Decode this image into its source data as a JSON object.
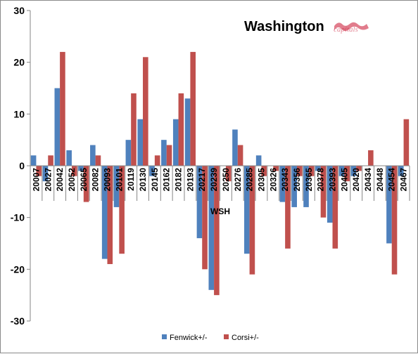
{
  "chart_data": {
    "type": "bar",
    "title": "Washington",
    "xlabel": "WSH",
    "ylabel": "",
    "ylim": [
      -30,
      30
    ],
    "yticks": [
      30,
      20,
      10,
      0,
      -10,
      -20,
      -30
    ],
    "grid": false,
    "legend_position": "bottom",
    "categories": [
      "20007",
      "20027",
      "20042",
      "20052",
      "20065",
      "20082",
      "20093",
      "20101",
      "20119",
      "20130",
      "20145",
      "20162",
      "20182",
      "20193",
      "20217",
      "20239",
      "20250",
      "20276",
      "20285",
      "20305",
      "20326",
      "20343",
      "20356",
      "20365",
      "20378",
      "20393",
      "20405",
      "20420",
      "20434",
      "20448",
      "20454",
      "20467"
    ],
    "series": [
      {
        "name": "Fenwick+/-",
        "color": "#4f81bd",
        "values": [
          2,
          -3,
          15,
          3,
          -1,
          4,
          -18,
          -8,
          5,
          9,
          -2,
          5,
          9,
          13,
          -14,
          -24,
          0,
          7,
          -17,
          2,
          0,
          -7,
          -8,
          -8,
          -1,
          -11,
          -2,
          -2,
          0,
          0,
          -15,
          -2
        ]
      },
      {
        "name": "Corsi+/-",
        "color": "#c0504d",
        "values": [
          -2,
          2,
          22,
          -2,
          -7,
          2,
          -19,
          -17,
          14,
          21,
          2,
          4,
          14,
          22,
          -20,
          -25,
          -3,
          4,
          -21,
          -2,
          -1,
          -16,
          -2,
          -2,
          -10,
          -16,
          -3,
          -1,
          3,
          0,
          -21,
          9
        ]
      }
    ]
  },
  "logo": {
    "icon": "capitals-wordmark-icon",
    "text": "capitals"
  }
}
